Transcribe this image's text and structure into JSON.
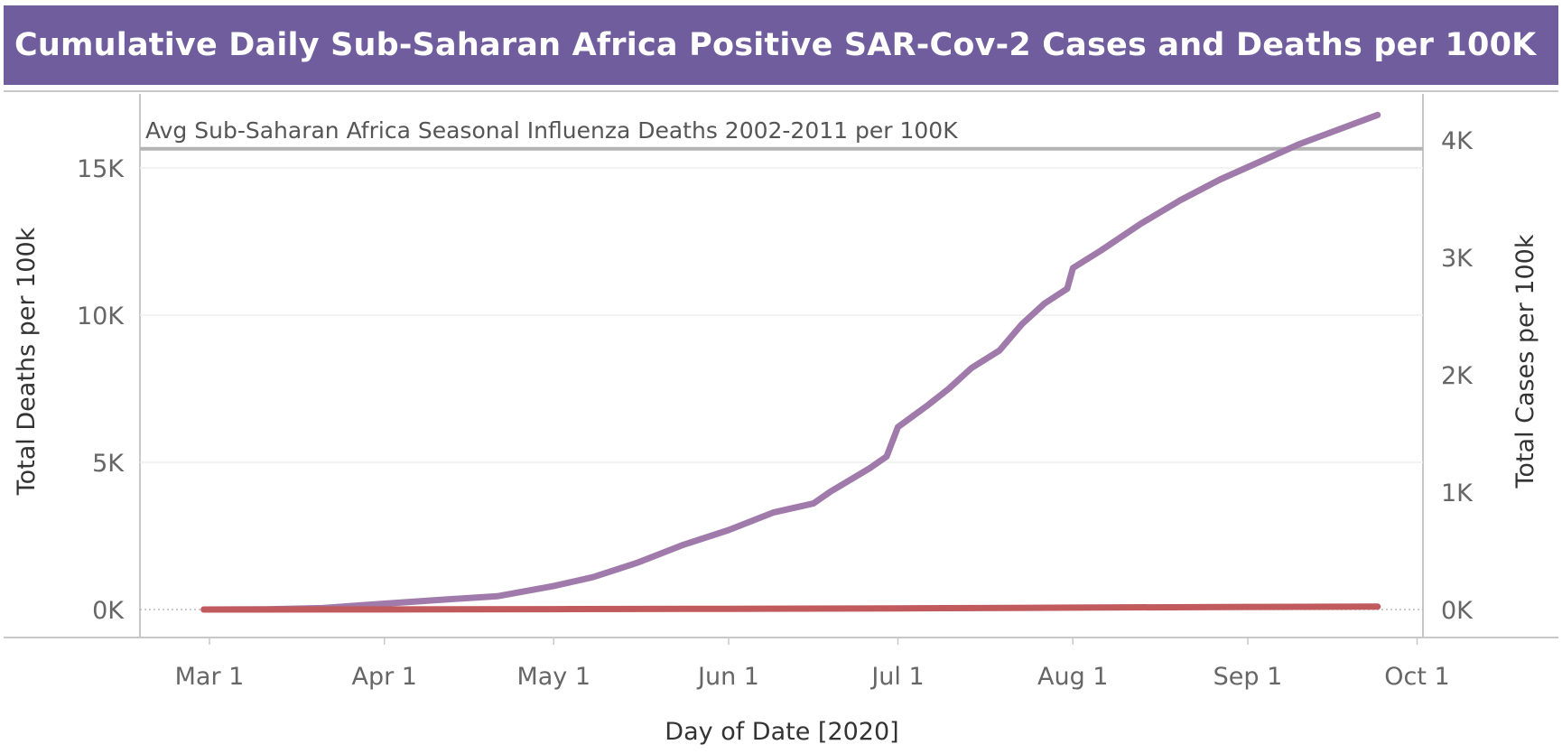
{
  "header": {
    "title": "Cumulative Daily Sub-Saharan Africa Positive SAR-Cov-2 Cases and Deaths per 100K"
  },
  "colors": {
    "title_bg": "#6f5d9e",
    "deaths_line": "#a07aaa",
    "cases_line": "#c15a5c",
    "reference_line": "#b3b3b3"
  },
  "chart_data": {
    "type": "line",
    "title": "Cumulative Daily Sub-Saharan Africa Positive SAR-Cov-2 Cases and Deaths per 100K",
    "xlabel": "Day of Date [2020]",
    "ylabel_left": "Total Deaths per 100k",
    "ylabel_right": "Total Cases per 100k",
    "x_range_days": [
      -4,
      214
    ],
    "ylim_left": [
      0,
      16500
    ],
    "ylim_right": [
      0,
      4200
    ],
    "x_ticks": [
      {
        "label": "Mar 1",
        "day": 0
      },
      {
        "label": "Apr 1",
        "day": 31
      },
      {
        "label": "May 1",
        "day": 61
      },
      {
        "label": "Jun 1",
        "day": 92
      },
      {
        "label": "Jul 1",
        "day": 122
      },
      {
        "label": "Aug 1",
        "day": 153
      },
      {
        "label": "Sep 1",
        "day": 184
      },
      {
        "label": "Oct 1",
        "day": 214
      }
    ],
    "y_ticks_left": [
      {
        "label": "0K",
        "value": 0
      },
      {
        "label": "5K",
        "value": 5000
      },
      {
        "label": "10K",
        "value": 10000
      },
      {
        "label": "15K",
        "value": 15000
      }
    ],
    "y_ticks_right": [
      {
        "label": "0K",
        "value": 0
      },
      {
        "label": "1K",
        "value": 1000
      },
      {
        "label": "2K",
        "value": 2000
      },
      {
        "label": "3K",
        "value": 3000
      },
      {
        "label": "4K",
        "value": 4000
      }
    ],
    "reference_line": {
      "label": "Avg Sub-Saharan Africa Seasonal Influenza Deaths 2002-2011 per 100K",
      "value": 15650,
      "axis": "left"
    },
    "series": [
      {
        "name": "Total Deaths per 100k",
        "axis": "left",
        "color": "#a07aaa",
        "x": [
          -1,
          10,
          20,
          31,
          41,
          51,
          61,
          68,
          76,
          84,
          92,
          100,
          107,
          110,
          117,
          120,
          122,
          127,
          131,
          135,
          140,
          144,
          148,
          152,
          153,
          158,
          165,
          172,
          179,
          186,
          193,
          200,
          207
        ],
        "values": [
          0,
          10,
          50,
          200,
          330,
          450,
          800,
          1100,
          1600,
          2200,
          2700,
          3300,
          3600,
          4000,
          4800,
          5200,
          6200,
          6900,
          7500,
          8200,
          8800,
          9700,
          10400,
          10900,
          11600,
          12200,
          13100,
          13900,
          14600,
          15200,
          15800,
          16300,
          16800
        ]
      },
      {
        "name": "Total Cases per 100k",
        "axis": "right",
        "color": "#c15a5c",
        "x": [
          -1,
          31,
          61,
          92,
          122,
          153,
          184,
          207
        ],
        "values": [
          0,
          1,
          3,
          6,
          10,
          16,
          22,
          25
        ]
      }
    ]
  }
}
